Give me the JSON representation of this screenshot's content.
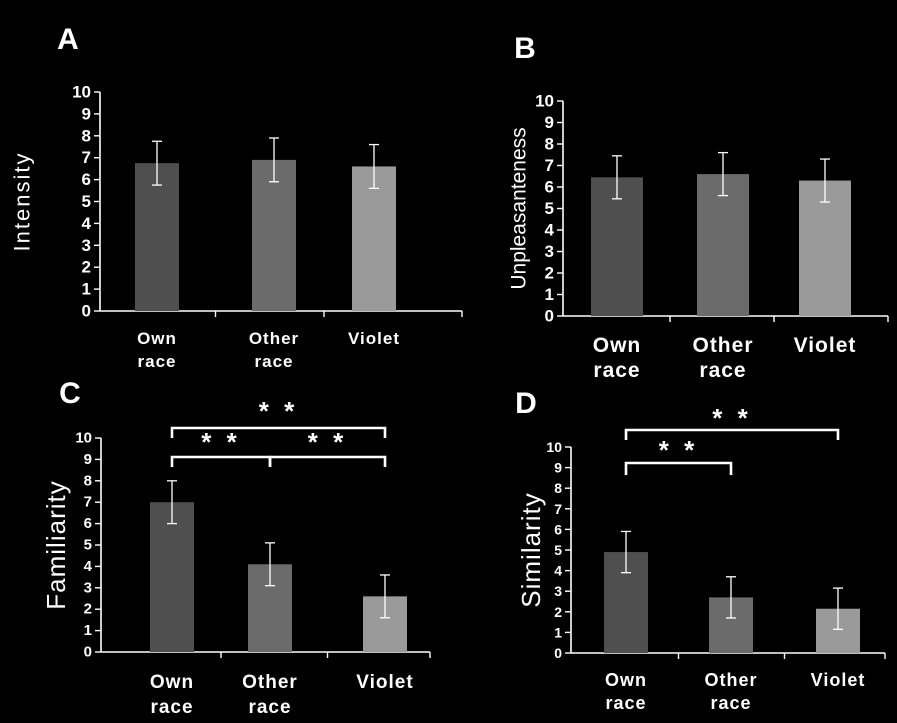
{
  "chart_data": [
    {
      "type": "bar",
      "panel_label": "A",
      "ylabel": "Intensity",
      "ylim": [
        0,
        10
      ],
      "yticks": [
        "0",
        "1",
        "2",
        "3",
        "4",
        "5",
        "6",
        "7",
        "8",
        "9",
        "10"
      ],
      "categories": [
        [
          "Own",
          "race"
        ],
        [
          "Other",
          "race"
        ],
        [
          "Violet"
        ]
      ],
      "values": [
        6.75,
        6.9,
        6.6
      ],
      "errors": [
        1.0,
        1.0,
        1.0
      ],
      "colors": [
        "#4f4f4f",
        "#6b6b6b",
        "#9a9a9a"
      ],
      "significance": []
    },
    {
      "type": "bar",
      "panel_label": "B",
      "ylabel": "Unpleasanteness",
      "ylim": [
        0,
        10
      ],
      "yticks": [
        "0",
        "1",
        "2",
        "3",
        "4",
        "5",
        "6",
        "7",
        "8",
        "9",
        "10"
      ],
      "categories": [
        [
          "Own",
          "race"
        ],
        [
          "Other",
          "race"
        ],
        [
          "Violet"
        ]
      ],
      "values": [
        6.45,
        6.6,
        6.3
      ],
      "errors": [
        1.0,
        1.0,
        1.0
      ],
      "colors": [
        "#4f4f4f",
        "#6b6b6b",
        "#9a9a9a"
      ],
      "significance": []
    },
    {
      "type": "bar",
      "panel_label": "C",
      "ylabel": "Familiarity",
      "ylim": [
        0,
        10
      ],
      "yticks": [
        "0",
        "1",
        "2",
        "3",
        "4",
        "5",
        "6",
        "7",
        "8",
        "9",
        "10"
      ],
      "categories": [
        [
          "Own",
          "race"
        ],
        [
          "Other",
          "race"
        ],
        [
          "Violet"
        ]
      ],
      "values": [
        7.0,
        4.1,
        2.6
      ],
      "errors": [
        1.0,
        1.0,
        1.0
      ],
      "colors": [
        "#4f4f4f",
        "#6b6b6b",
        "#9a9a9a"
      ],
      "significance": [
        {
          "from": 0,
          "to": 2,
          "label": "* *"
        },
        {
          "from": 0,
          "to": 1,
          "label": "* *"
        },
        {
          "from": 1,
          "to": 2,
          "label": "* *"
        }
      ]
    },
    {
      "type": "bar",
      "panel_label": "D",
      "ylabel": "Similarity",
      "ylim": [
        0,
        10
      ],
      "yticks": [
        "0",
        "1",
        "2",
        "3",
        "4",
        "5",
        "6",
        "7",
        "8",
        "9",
        "10"
      ],
      "categories": [
        [
          "Own",
          "race"
        ],
        [
          "Other",
          "race"
        ],
        [
          "Violet"
        ]
      ],
      "values": [
        4.9,
        2.7,
        2.15
      ],
      "errors": [
        1.0,
        1.0,
        1.0
      ],
      "colors": [
        "#4f4f4f",
        "#6b6b6b",
        "#9a9a9a"
      ],
      "significance": [
        {
          "from": 0,
          "to": 2,
          "label": "* *"
        },
        {
          "from": 0,
          "to": 1,
          "label": "* *"
        }
      ]
    }
  ]
}
